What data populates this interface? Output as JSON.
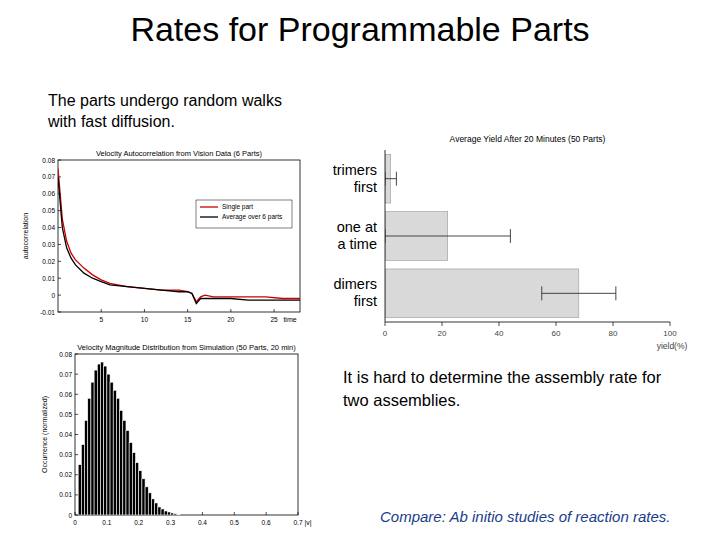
{
  "slide": {
    "title": "Rates for Programmable Parts",
    "intro": "The parts undergo random walks with fast diffusion.",
    "note": "It is hard to determine the assembly rate for two assemblies.",
    "compare": "Compare: Ab initio studies of reaction rates."
  },
  "chart_data": [
    {
      "type": "line",
      "title": "Velocity Autocorrelation from Vision Data (6 Parts)",
      "xlabel": "time",
      "ylabel": "autocorrelation",
      "x": [
        0,
        0.5,
        1,
        1.5,
        2,
        3,
        4,
        5,
        6,
        8,
        10,
        12,
        14,
        15,
        15.5,
        16,
        16.5,
        17,
        18,
        20,
        22,
        24,
        26,
        28
      ],
      "series": [
        {
          "name": "Single part",
          "color": "#cc0000",
          "values": [
            0.075,
            0.045,
            0.032,
            0.025,
            0.021,
            0.016,
            0.012,
            0.009,
            0.007,
            0.005,
            0.004,
            0.003,
            0.003,
            0.002,
            0.001,
            -0.004,
            -0.001,
            0,
            -0.001,
            -0.001,
            -0.001,
            -0.001,
            -0.002,
            -0.002
          ]
        },
        {
          "name": "Average over 6 parts",
          "color": "#000000",
          "values": [
            0.07,
            0.04,
            0.028,
            0.022,
            0.018,
            0.013,
            0.01,
            0.008,
            0.006,
            0.005,
            0.004,
            0.003,
            0.002,
            0.002,
            0.001,
            -0.005,
            -0.002,
            -0.002,
            -0.002,
            -0.002,
            -0.003,
            -0.003,
            -0.003,
            -0.003
          ]
        }
      ],
      "xlim": [
        0,
        28
      ],
      "xticks": [
        5,
        10,
        15,
        20,
        25
      ],
      "ylim": [
        -0.01,
        0.08
      ],
      "yticks": [
        -0.01,
        0,
        0.01,
        0.02,
        0.03,
        0.04,
        0.05,
        0.06,
        0.07,
        0.08
      ],
      "grid": false,
      "legend": "upper right"
    },
    {
      "type": "histogram",
      "title": "Velocity Magnitude Distribution from Simulation (50 Parts, 20 min)",
      "xlabel": "|v|",
      "ylabel": "Occurrence (normalized)",
      "bins": [
        0.01,
        0.02,
        0.03,
        0.04,
        0.05,
        0.06,
        0.07,
        0.08,
        0.09,
        0.1,
        0.11,
        0.12,
        0.13,
        0.14,
        0.15,
        0.16,
        0.17,
        0.18,
        0.19,
        0.2,
        0.21,
        0.22,
        0.23,
        0.24,
        0.25,
        0.26,
        0.27,
        0.28,
        0.29,
        0.3,
        0.31,
        0.32,
        0.33
      ],
      "values": [
        0.025,
        0.035,
        0.047,
        0.058,
        0.066,
        0.072,
        0.075,
        0.076,
        0.074,
        0.07,
        0.066,
        0.062,
        0.058,
        0.052,
        0.047,
        0.042,
        0.036,
        0.031,
        0.026,
        0.022,
        0.018,
        0.014,
        0.011,
        0.008,
        0.006,
        0.004,
        0.003,
        0.002,
        0.0015,
        0.001,
        0.0006,
        0.0003
      ],
      "color": "#000000",
      "xlim": [
        0,
        0.7
      ],
      "xticks": [
        0,
        0.1,
        0.2,
        0.3,
        0.4,
        0.5,
        0.6,
        0.7
      ],
      "ylim": [
        0,
        0.08
      ],
      "yticks": [
        0,
        0.01,
        0.02,
        0.03,
        0.04,
        0.05,
        0.06,
        0.07,
        0.08
      ],
      "grid": false
    },
    {
      "type": "bar",
      "orientation": "horizontal",
      "title": "Average Yield After 20 Minutes (50 Parts)",
      "xlabel": "yield(%)",
      "categories": [
        "trimers first",
        "one at a time",
        "dimers first"
      ],
      "values": [
        2,
        22,
        68
      ],
      "errors": [
        2,
        22,
        13
      ],
      "color": "#d9d9d9",
      "xlim": [
        0,
        100
      ],
      "xticks": [
        0,
        20,
        40,
        60,
        80,
        100
      ],
      "grid": false
    }
  ]
}
